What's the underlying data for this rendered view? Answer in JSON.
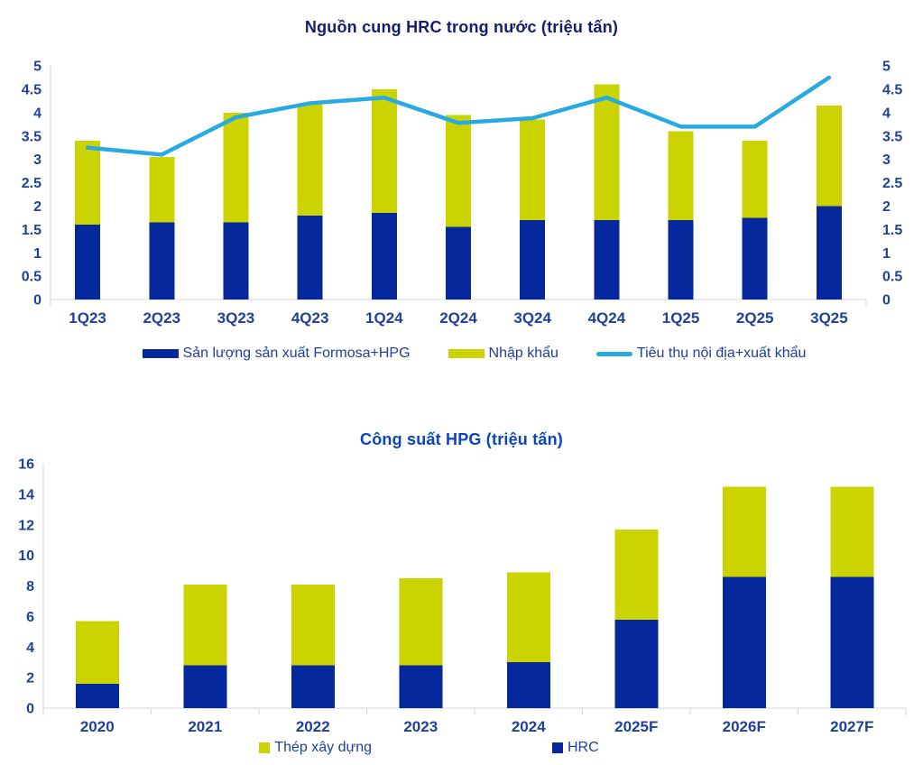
{
  "page": {
    "background": "#FFFFFF"
  },
  "chart_data": [
    {
      "type": "stacked-bar+line",
      "title": "Nguồn cung HRC trong nước (triệu tấn)",
      "title_color": "#151D70",
      "text_color": "#20409A",
      "categories": [
        "1Q23",
        "2Q23",
        "3Q23",
        "4Q23",
        "1Q24",
        "2Q24",
        "3Q24",
        "4Q24",
        "1Q25",
        "2Q25",
        "3Q25"
      ],
      "series": [
        {
          "name": "Sản lượng sản xuất Formosa+HPG",
          "role": "bar",
          "color": "#05289D",
          "values": [
            1.6,
            1.65,
            1.65,
            1.8,
            1.85,
            1.55,
            1.7,
            1.7,
            1.7,
            1.75,
            2.0
          ]
        },
        {
          "name": "Nhập khẩu",
          "role": "bar",
          "color": "#CBD400",
          "values": [
            1.8,
            1.4,
            2.35,
            2.4,
            2.65,
            2.4,
            2.15,
            2.9,
            1.9,
            1.65,
            2.15
          ]
        },
        {
          "name": "Tiêu thụ nội địa+xuất khẩu",
          "role": "line",
          "color": "#27AAE1",
          "values": [
            3.25,
            3.1,
            3.9,
            4.2,
            4.32,
            3.78,
            3.88,
            4.32,
            3.7,
            3.7,
            4.75
          ]
        }
      ],
      "stacked_totals": [
        3.4,
        3.05,
        4.0,
        4.2,
        4.5,
        3.95,
        3.85,
        4.6,
        3.6,
        3.4,
        4.15
      ],
      "y_axis": {
        "min": 0,
        "max": 5,
        "step": 0.5,
        "ticks": [
          "0",
          "0.5",
          "1",
          "1.5",
          "2",
          "2.5",
          "3",
          "3.5",
          "4",
          "4.5",
          "5"
        ]
      },
      "right_axis": {
        "min": 0,
        "max": 5,
        "step": 0.5,
        "ticks": [
          "0",
          "0.5",
          "1",
          "1.5",
          "2",
          "2.5",
          "3",
          "3.5",
          "4",
          "4.5",
          "5"
        ]
      },
      "grid": "off",
      "legend_position": "bottom",
      "legend": [
        {
          "label": "Sản lượng sản xuất Formosa+HPG",
          "marker": "rect",
          "color": "#05289D"
        },
        {
          "label": "Nhập khẩu",
          "marker": "rect",
          "color": "#CBD400"
        },
        {
          "label": "Tiêu thụ nội địa+xuất khẩu",
          "marker": "line",
          "color": "#27AAE1"
        }
      ]
    },
    {
      "type": "stacked-bar",
      "title": "Công suất HPG (triệu tấn)",
      "title_color": "#0A44C2",
      "text_color": "#20409A",
      "categories": [
        "2020",
        "2021",
        "2022",
        "2023",
        "2024",
        "2025F",
        "2026F",
        "2027F"
      ],
      "series": [
        {
          "name": "HRC",
          "role": "bar",
          "color": "#05289D",
          "values": [
            1.6,
            2.8,
            2.8,
            2.8,
            3.0,
            5.8,
            8.6,
            8.6
          ]
        },
        {
          "name": "Thép xây dựng",
          "role": "bar",
          "color": "#CBD400",
          "values": [
            4.1,
            5.3,
            5.3,
            5.7,
            5.9,
            5.9,
            5.9,
            5.9
          ]
        }
      ],
      "stacked_totals": [
        5.7,
        8.1,
        8.1,
        8.5,
        8.9,
        11.7,
        14.5,
        14.5
      ],
      "y_axis": {
        "min": 0,
        "max": 16,
        "step": 2,
        "ticks": [
          "0",
          "2",
          "4",
          "6",
          "8",
          "10",
          "12",
          "14",
          "16"
        ]
      },
      "grid": "off",
      "legend_position": "bottom",
      "legend": [
        {
          "label": "Thép xây dựng",
          "marker": "square",
          "color": "#CBD400"
        },
        {
          "label": "HRC",
          "marker": "square",
          "color": "#05289D"
        }
      ]
    }
  ]
}
